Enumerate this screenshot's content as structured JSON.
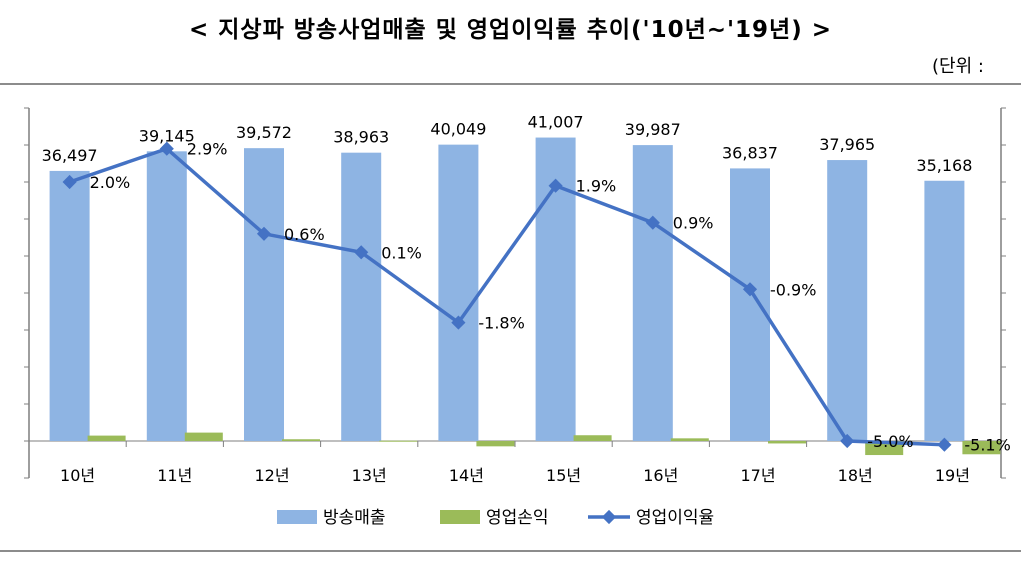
{
  "title": "< 지상파 방송사업매출 및 영업이익률 추이('10년~'19년) >",
  "unit_label": "(단위 :",
  "chart_data": {
    "type": "bar",
    "categories": [
      "10년",
      "11년",
      "12년",
      "13년",
      "14년",
      "15년",
      "16년",
      "17년",
      "18년",
      "19년"
    ],
    "series": [
      {
        "name": "방송매출",
        "type": "bar",
        "axis": "left",
        "color": "#8eb4e3",
        "values": [
          36497,
          39145,
          39572,
          38963,
          40049,
          41007,
          39987,
          36837,
          37965,
          35168
        ],
        "labels": [
          "36,497",
          "39,145",
          "39,572",
          "38,963",
          "40,049",
          "41,007",
          "39,987",
          "36,837",
          "37,965",
          "35,168"
        ]
      },
      {
        "name": "영업손익",
        "type": "bar",
        "axis": "left",
        "color": "#9bbb59",
        "values": [
          730,
          1135,
          237,
          39,
          -721,
          779,
          360,
          -331,
          -1898,
          -1794
        ]
      },
      {
        "name": "영업이익율",
        "type": "line",
        "axis": "right",
        "color": "#4472c4",
        "values": [
          2.0,
          2.9,
          0.6,
          0.1,
          -1.8,
          1.9,
          0.9,
          -0.9,
          -5.0,
          -5.1
        ],
        "labels": [
          "2.0%",
          "2.9%",
          "0.6%",
          "0.1%",
          "-1.8%",
          "1.9%",
          "0.9%",
          "-0.9%",
          "-5.0%",
          "-5.1%"
        ]
      }
    ],
    "ylim_left": [
      -5000,
      45000
    ],
    "ylim_right": [
      -6,
      4
    ],
    "grid": false,
    "legend_position": "bottom"
  }
}
